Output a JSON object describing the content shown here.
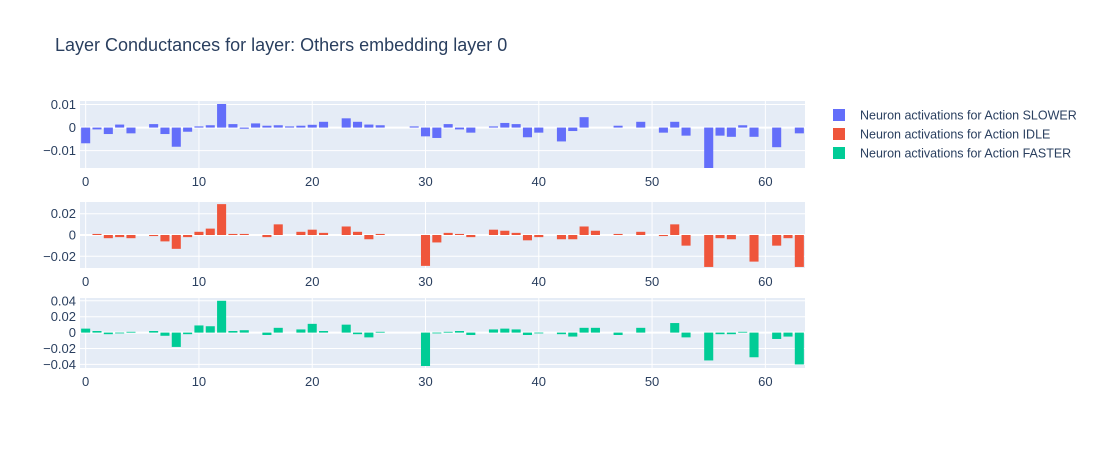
{
  "chart_data": {
    "type": "bar",
    "title": "Layer Conductances for layer: Others embedding layer 0",
    "legend_position": "right",
    "grid": true,
    "background_color": "#e5ecf6",
    "x": [
      0,
      1,
      2,
      3,
      4,
      5,
      6,
      7,
      8,
      9,
      10,
      11,
      12,
      13,
      14,
      15,
      16,
      17,
      18,
      19,
      20,
      21,
      22,
      23,
      24,
      25,
      26,
      27,
      28,
      29,
      30,
      31,
      32,
      33,
      34,
      35,
      36,
      37,
      38,
      39,
      40,
      41,
      42,
      43,
      44,
      45,
      46,
      47,
      48,
      49,
      50,
      51,
      52,
      53,
      54,
      55,
      56,
      57,
      58,
      59,
      60,
      61,
      62,
      63
    ],
    "x_tick_values": [
      0,
      10,
      20,
      30,
      40,
      50,
      60
    ],
    "x_tick_labels": [
      "0",
      "10",
      "20",
      "30",
      "40",
      "50",
      "60"
    ],
    "xlim": [
      -0.5,
      63.5
    ],
    "series": [
      {
        "name": "Neuron activations for Action SLOWER",
        "color": "#636efa",
        "ylim": [
          -0.0175,
          0.0115
        ],
        "y_tick_values": [
          0.01,
          0,
          -0.01
        ],
        "y_tick_labels": [
          "0.01",
          "0",
          "−0.01"
        ],
        "values": [
          -0.0068,
          -0.0008,
          -0.0028,
          0.0013,
          -0.0025,
          0,
          0.0015,
          -0.0028,
          -0.0083,
          -0.0018,
          0.0005,
          0.001,
          0.0102,
          0.0015,
          -0.0005,
          0.0018,
          0.0008,
          0.001,
          0.0005,
          0.0008,
          0.0012,
          0.0025,
          0,
          0.004,
          0.0025,
          0.0013,
          0.001,
          0,
          0,
          0.0005,
          -0.0038,
          -0.0045,
          0.0015,
          -0.0008,
          -0.0022,
          0,
          0.0005,
          0.002,
          0.0015,
          -0.0042,
          -0.0022,
          0,
          -0.006,
          -0.0015,
          0.0045,
          0,
          0,
          0.0008,
          0,
          0.0025,
          0,
          -0.0022,
          0.0025,
          -0.0035,
          0,
          -0.0175,
          -0.0035,
          -0.004,
          0.001,
          -0.004,
          0,
          -0.0085,
          0,
          -0.0025
        ]
      },
      {
        "name": "Neuron activations for Action IDLE",
        "color": "#ef553b",
        "ylim": [
          -0.031,
          0.031
        ],
        "y_tick_values": [
          0.02,
          0,
          -0.02
        ],
        "y_tick_labels": [
          "0.02",
          "0",
          "−0.02"
        ],
        "values": [
          0,
          0.001,
          -0.003,
          -0.002,
          -0.003,
          0,
          -0.001,
          -0.006,
          -0.013,
          -0.002,
          0.003,
          0.006,
          0.029,
          0.001,
          0.001,
          0,
          -0.002,
          0.01,
          0,
          0.003,
          0.005,
          0.002,
          0,
          0.008,
          0.003,
          -0.004,
          0.001,
          0,
          0,
          0,
          -0.029,
          -0.007,
          0.002,
          0.001,
          -0.002,
          0,
          0.005,
          0.004,
          0.002,
          -0.005,
          -0.002,
          0,
          -0.004,
          -0.004,
          0.008,
          0.004,
          0,
          0.001,
          0,
          0.003,
          0,
          -0.001,
          0.01,
          -0.01,
          0,
          -0.03,
          -0.003,
          -0.004,
          0,
          -0.025,
          0,
          -0.01,
          -0.003,
          -0.03
        ]
      },
      {
        "name": "Neuron activations for Action FASTER",
        "color": "#00cc96",
        "ylim": [
          -0.0445,
          0.0435
        ],
        "y_tick_values": [
          0.04,
          0.02,
          0,
          -0.02,
          -0.04
        ],
        "y_tick_labels": [
          "0.04",
          "0.02",
          "0",
          "−0.02",
          "−0.04"
        ],
        "values": [
          0.005,
          0.002,
          -0.002,
          -0.001,
          0.001,
          0,
          0.002,
          -0.004,
          -0.018,
          -0.002,
          0.009,
          0.008,
          0.04,
          0.002,
          0.003,
          0,
          -0.003,
          0.006,
          0,
          0.004,
          0.011,
          0.002,
          0,
          0.01,
          -0.002,
          -0.006,
          0.001,
          0,
          0,
          0,
          -0.042,
          -0.001,
          0.001,
          0.002,
          -0.003,
          0,
          0.004,
          0.005,
          0.004,
          -0.003,
          -0.001,
          0,
          -0.002,
          -0.005,
          0.006,
          0.006,
          0,
          -0.003,
          0,
          0.006,
          0,
          0,
          0.012,
          -0.006,
          0,
          -0.035,
          -0.002,
          -0.002,
          0.001,
          -0.031,
          0,
          -0.008,
          -0.005,
          -0.04
        ]
      }
    ]
  }
}
